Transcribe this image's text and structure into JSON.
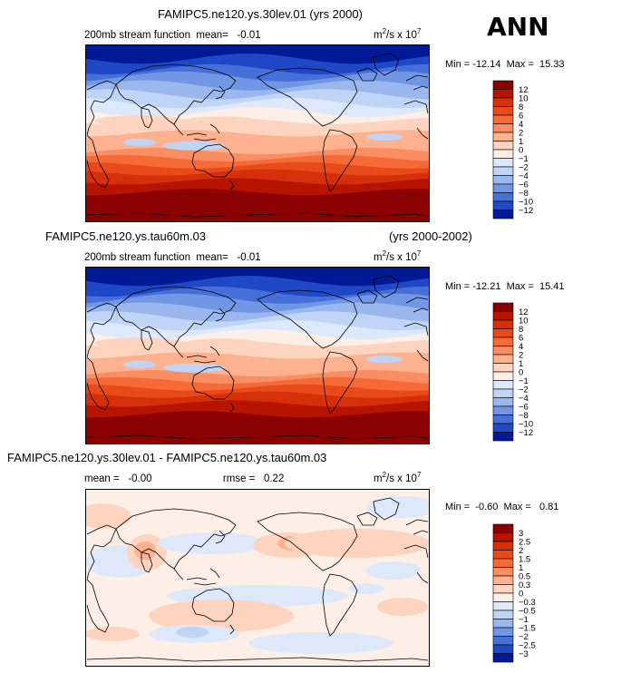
{
  "page": {
    "season": "ANN",
    "diff_heading": "FAMIPC5.ne120.ys.30lev.01 - FAMIPC5.ne120.ys.tau60m.03"
  },
  "chart_data": [
    {
      "type": "heatmap",
      "title": "FAMIPC5.ne120.ys.30lev.01 (yrs 2000)",
      "variable": "200mb stream function",
      "mean_label": "mean=",
      "mean": "-0.01",
      "units": {
        "base": "m",
        "exp1": "2",
        "mid": "/s x 10",
        "exp2": "7"
      },
      "min_label": "Min =",
      "min": "-12.14",
      "max_label": "Max =",
      "max": "15.33",
      "levels": [
        "12",
        "10",
        "8",
        "6",
        "4",
        "2",
        "1",
        "0",
        "-1",
        "-2",
        "-4",
        "-6",
        "-8",
        "-10",
        "-12"
      ],
      "colors": [
        "#8b0000",
        "#b71400",
        "#d5300a",
        "#e84b19",
        "#f56a37",
        "#fb8d62",
        "#fdb18f",
        "#ffd4bf",
        "#fdeee6",
        "#dde9fb",
        "#c0d4f6",
        "#9ab8ee",
        "#7196e3",
        "#4670d8",
        "#1f48c6",
        "#001a97"
      ],
      "band_lat": [
        0.08,
        0.14,
        0.18,
        0.23,
        0.28,
        0.33,
        0.38,
        0.43,
        0.5,
        0.6,
        0.64,
        0.68,
        0.72,
        0.77,
        0.83
      ],
      "band_lon_wave": 0.018
    },
    {
      "type": "heatmap",
      "title": "FAMIPC5.ne120.ys.tau60m.03",
      "years": "(yrs 2000-2002)",
      "variable": "200mb stream function",
      "mean_label": "mean=",
      "mean": "-0.01",
      "units": {
        "base": "m",
        "exp1": "2",
        "mid": "/s x 10",
        "exp2": "7"
      },
      "min_label": "Min =",
      "min": "-12.21",
      "max_label": "Max =",
      "max": "15.41",
      "levels": [
        "12",
        "10",
        "8",
        "6",
        "4",
        "2",
        "1",
        "0",
        "-1",
        "-2",
        "-4",
        "-6",
        "-8",
        "-10",
        "-12"
      ],
      "colors": [
        "#8b0000",
        "#b71400",
        "#d5300a",
        "#e84b19",
        "#f56a37",
        "#fb8d62",
        "#fdb18f",
        "#ffd4bf",
        "#fdeee6",
        "#dde9fb",
        "#c0d4f6",
        "#9ab8ee",
        "#7196e3",
        "#4670d8",
        "#1f48c6",
        "#001a97"
      ],
      "band_lat": [
        0.08,
        0.14,
        0.18,
        0.23,
        0.28,
        0.33,
        0.38,
        0.43,
        0.5,
        0.6,
        0.64,
        0.68,
        0.72,
        0.77,
        0.83
      ],
      "band_lon_wave": 0.018
    },
    {
      "type": "heatmap",
      "title": "",
      "variable": "",
      "mean_label": "mean =",
      "mean": "-0.00",
      "rmse_label": "rmse =",
      "rmse": "0.22",
      "units": {
        "base": "m",
        "exp1": "2",
        "mid": "/s x 10",
        "exp2": "7"
      },
      "min_label": "Min =",
      "min": "-0.60",
      "max_label": "Max =",
      "max": "0.81",
      "levels": [
        "3",
        "2.5",
        "2",
        "1.5",
        "1",
        "0.5",
        "0.3",
        "0",
        "-0.3",
        "-0.5",
        "-1",
        "-1.5",
        "-2",
        "-2.5",
        "-3"
      ],
      "colors": [
        "#8b0000",
        "#b71400",
        "#d5300a",
        "#e84b19",
        "#f56a37",
        "#fb8d62",
        "#fdb18f",
        "#ffd4bf",
        "#fdeee6",
        "#dde9fb",
        "#c0d4f6",
        "#9ab8ee",
        "#7196e3",
        "#4670d8",
        "#1f48c6",
        "#001a97"
      ]
    }
  ]
}
